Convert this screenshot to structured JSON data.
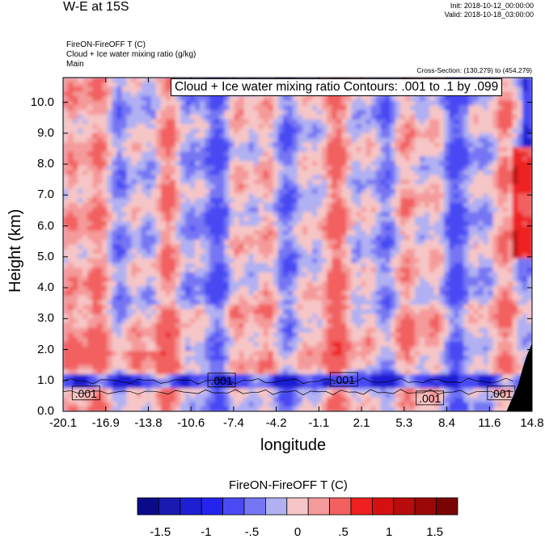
{
  "header": {
    "title": "W-E at 15S",
    "init": "Init: 2018-10-12_00:00:00",
    "valid": "Valid: 2018-10-18_03:00:00",
    "field1": "FireON-FireOFF T   (C)",
    "field2": "Cloud + Ice water mixing ratio   (g/kg)",
    "field3": "Main",
    "cross_section": "Cross-Section: (130,279) to (454,279)"
  },
  "chart_data": {
    "type": "heatmap",
    "title": "FireON-FireOFF T (C)",
    "contour_info": "Cloud + Ice water mixing ratio Contours: .001 to .1 by .099",
    "xlabel": "longitude",
    "ylabel": "Height (km)",
    "xlim": [
      -20.1,
      14.8
    ],
    "ylim": [
      0.0,
      10.8
    ],
    "x_ticks": [
      "-20.1",
      "-16.9",
      "-13.8",
      "-10.6",
      "-7.4",
      "-4.2",
      "-1.1",
      "2.1",
      "5.3",
      "8.4",
      "11.6",
      "14.8"
    ],
    "y_ticks": [
      "0.0",
      "1.0",
      "2.0",
      "3.0",
      "4.0",
      "5.0",
      "6.0",
      "7.0",
      "8.0",
      "9.0",
      "10.0"
    ],
    "y_tick_values": [
      0,
      1,
      2,
      3,
      4,
      5,
      6,
      7,
      8,
      9,
      10
    ],
    "contour_labels": [
      {
        "text": ".001",
        "x": -18.4,
        "y": 0.58
      },
      {
        "text": ".001",
        "x": -8.3,
        "y": 1.0
      },
      {
        "text": ".001",
        "x": 0.8,
        "y": 1.02
      },
      {
        "text": ".001",
        "x": 7.2,
        "y": 0.42
      },
      {
        "text": ".001",
        "x": 12.5,
        "y": 0.58
      }
    ],
    "colorbar": {
      "title": "FireON-FireOFF T  (C)",
      "levels": [
        -1.75,
        -1.5,
        -1.25,
        -1,
        -0.75,
        -0.5,
        -0.25,
        0,
        0.25,
        0.5,
        0.75,
        1,
        1.25,
        1.5,
        1.75
      ],
      "colors": [
        "#0b0b8a",
        "#1a1ab0",
        "#1e1ed2",
        "#2424ee",
        "#4a4af4",
        "#7676f4",
        "#b0b0f2",
        "#f6c6c6",
        "#f59a9a",
        "#f26060",
        "#ee2020",
        "#d61010",
        "#b80c0c",
        "#9a0808",
        "#7a0404"
      ],
      "tick_labels": [
        "-1.5",
        "-1",
        "-.5",
        "0",
        ".5",
        "1",
        "1.5"
      ],
      "tick_values": [
        -1.5,
        -1,
        -0.5,
        0,
        0.5,
        1,
        1.5
      ]
    }
  }
}
